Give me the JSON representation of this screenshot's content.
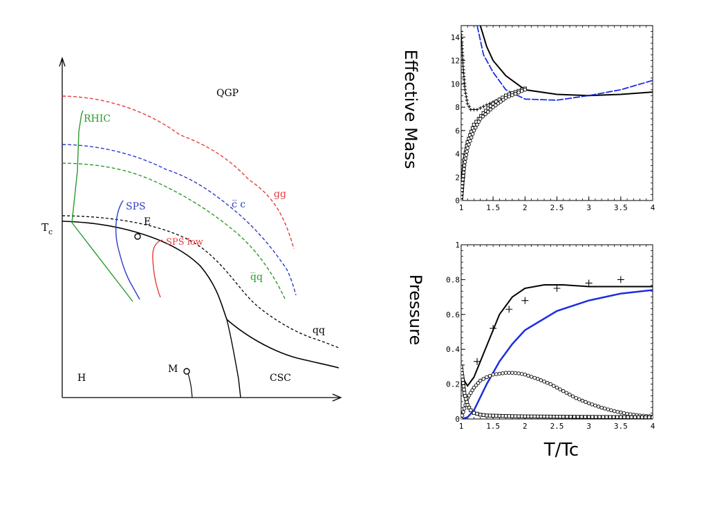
{
  "phase_diagram": {
    "region_labels": [
      "QGP",
      "H",
      "CSC"
    ],
    "tc_label": "T",
    "tc_subscript": "c",
    "point_labels": [
      "E",
      "M"
    ],
    "curve_labels": [
      {
        "text": "gg",
        "color": "#e83a3a"
      },
      {
        "text": "c̅ c",
        "color": "#2a3ac8"
      },
      {
        "text": "q̅q",
        "color": "#2a9a2a"
      },
      {
        "text": "qq",
        "color": "#000000"
      },
      {
        "text": "RHIC",
        "color": "#2a9a2a"
      },
      {
        "text": "SPS",
        "color": "#2a3ac8"
      },
      {
        "text": "SPS low",
        "color": "#e83a3a"
      }
    ]
  },
  "chart_data": [
    {
      "type": "line",
      "ylabel": "Effective Mass",
      "xlabel": "",
      "xlim": [
        1,
        4
      ],
      "ylim": [
        0,
        15
      ],
      "x_ticks": [
        "1",
        "1.5",
        "2",
        "2.5",
        "3",
        "3.5",
        "4"
      ],
      "y_ticks": [
        "0",
        "2",
        "4",
        "6",
        "8",
        "10",
        "12",
        "14"
      ],
      "series": [
        {
          "style": "black-line",
          "x": [
            1.3,
            1.4,
            1.5,
            1.7,
            2.0,
            2.5,
            3.0,
            3.5,
            4.0
          ],
          "y": [
            15,
            13.2,
            12.0,
            10.7,
            9.5,
            9.1,
            9.0,
            9.1,
            9.3
          ]
        },
        {
          "style": "blue-dashed",
          "x": [
            1.25,
            1.35,
            1.5,
            1.7,
            2.0,
            2.5,
            3.0,
            3.5,
            4.0
          ],
          "y": [
            15,
            12.5,
            11.0,
            9.5,
            8.7,
            8.6,
            9.0,
            9.5,
            10.3
          ]
        },
        {
          "style": "plus-markers",
          "x": [
            1.0,
            1.03,
            1.06,
            1.1,
            1.15,
            1.25,
            1.4,
            1.6,
            1.8,
            2.0
          ],
          "y": [
            14.5,
            11.5,
            9.5,
            8.3,
            7.8,
            7.8,
            8.2,
            8.7,
            9.2,
            9.5
          ]
        },
        {
          "style": "square-markers",
          "x": [
            1.0,
            1.05,
            1.1,
            1.2,
            1.35,
            1.5,
            1.7,
            2.0
          ],
          "y": [
            0.0,
            3.5,
            5.0,
            6.5,
            7.5,
            8.3,
            9.0,
            9.6
          ]
        },
        {
          "style": "circle-markers",
          "x": [
            1.0,
            1.02,
            1.05,
            1.1,
            1.2,
            1.3,
            1.5,
            1.7,
            2.0
          ],
          "y": [
            0.0,
            1.5,
            3.0,
            4.5,
            6.0,
            7.0,
            8.0,
            8.8,
            9.5
          ]
        }
      ]
    },
    {
      "type": "line",
      "ylabel": "Pressure",
      "xlabel": "T/Tc",
      "xlim": [
        1,
        4
      ],
      "ylim": [
        0,
        1
      ],
      "x_ticks": [
        "1",
        "1.5",
        "2",
        "2.5",
        "3",
        "3.5",
        "4"
      ],
      "y_ticks": [
        "0",
        "0.2",
        "0.4",
        "0.6",
        "0.8",
        "1"
      ],
      "series": [
        {
          "style": "black-line",
          "x": [
            1.0,
            1.05,
            1.1,
            1.2,
            1.4,
            1.6,
            1.8,
            2.0,
            2.3,
            2.6,
            3.0,
            3.5,
            4.0
          ],
          "y": [
            0.3,
            0.22,
            0.19,
            0.24,
            0.42,
            0.6,
            0.7,
            0.75,
            0.77,
            0.77,
            0.76,
            0.76,
            0.76
          ]
        },
        {
          "style": "blue-line",
          "x": [
            1.0,
            1.1,
            1.2,
            1.4,
            1.6,
            1.8,
            2.0,
            2.5,
            3.0,
            3.5,
            4.0
          ],
          "y": [
            0.0,
            0.01,
            0.05,
            0.2,
            0.33,
            0.43,
            0.51,
            0.62,
            0.68,
            0.72,
            0.74
          ]
        },
        {
          "style": "plus-markers",
          "x": [
            1.0,
            1.25,
            1.5,
            1.75,
            2.0,
            2.5,
            3.0,
            3.5
          ],
          "y": [
            0.31,
            0.33,
            0.52,
            0.63,
            0.68,
            0.75,
            0.78,
            0.8
          ]
        },
        {
          "style": "circle-markers",
          "x": [
            1.0,
            1.1,
            1.2,
            1.3,
            1.4,
            1.5,
            1.6,
            1.7,
            1.8,
            1.9,
            2.0,
            2.2,
            2.4,
            2.6,
            2.8,
            3.0,
            3.2,
            3.4,
            3.6,
            3.8,
            4.0
          ],
          "y": [
            0.0,
            0.12,
            0.18,
            0.22,
            0.24,
            0.255,
            0.26,
            0.265,
            0.265,
            0.262,
            0.255,
            0.23,
            0.2,
            0.16,
            0.12,
            0.09,
            0.065,
            0.045,
            0.03,
            0.02,
            0.015
          ]
        },
        {
          "style": "square-markers",
          "x": [
            1.0,
            1.05,
            1.1,
            1.15,
            1.2,
            1.3,
            1.4,
            1.6,
            1.8,
            2.0,
            2.3,
            2.6,
            3.0,
            3.5,
            4.0
          ],
          "y": [
            0.3,
            0.15,
            0.08,
            0.05,
            0.035,
            0.025,
            0.02,
            0.018,
            0.016,
            0.015,
            0.014,
            0.013,
            0.012,
            0.011,
            0.01
          ]
        }
      ]
    }
  ]
}
